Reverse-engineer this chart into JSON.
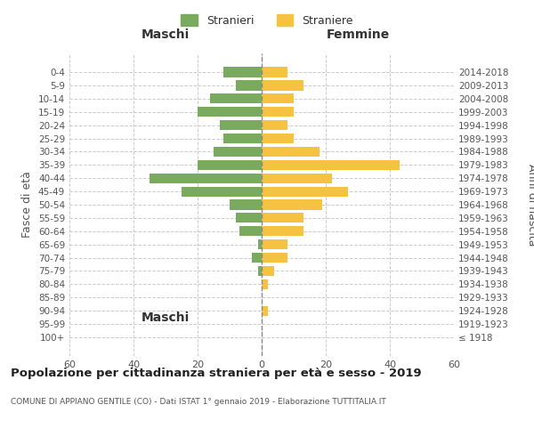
{
  "age_groups": [
    "100+",
    "95-99",
    "90-94",
    "85-89",
    "80-84",
    "75-79",
    "70-74",
    "65-69",
    "60-64",
    "55-59",
    "50-54",
    "45-49",
    "40-44",
    "35-39",
    "30-34",
    "25-29",
    "20-24",
    "15-19",
    "10-14",
    "5-9",
    "0-4"
  ],
  "birth_years": [
    "≤ 1918",
    "1919-1923",
    "1924-1928",
    "1929-1933",
    "1934-1938",
    "1939-1943",
    "1944-1948",
    "1949-1953",
    "1954-1958",
    "1959-1963",
    "1964-1968",
    "1969-1973",
    "1974-1978",
    "1979-1983",
    "1984-1988",
    "1989-1993",
    "1994-1998",
    "1999-2003",
    "2004-2008",
    "2009-2013",
    "2014-2018"
  ],
  "maschi": [
    0,
    0,
    0,
    0,
    0,
    1,
    3,
    1,
    7,
    8,
    10,
    25,
    35,
    20,
    15,
    12,
    13,
    20,
    16,
    8,
    12
  ],
  "femmine": [
    0,
    0,
    2,
    0,
    2,
    4,
    8,
    8,
    13,
    13,
    19,
    27,
    22,
    43,
    18,
    10,
    8,
    10,
    10,
    13,
    8
  ],
  "color_maschi": "#7aaa5e",
  "color_femmine": "#f5c242",
  "background_color": "#ffffff",
  "grid_color": "#cccccc",
  "title_main": "Popolazione per cittadinanza straniera per età e sesso - 2019",
  "title_sub": "COMUNE DI APPIANO GENTILE (CO) - Dati ISTAT 1° gennaio 2019 - Elaborazione TUTTITALIA.IT",
  "xlabel_left": "Maschi",
  "xlabel_right": "Femmine",
  "ylabel_left": "Fasce di età",
  "ylabel_right": "Anni di nascita",
  "legend_maschi": "Stranieri",
  "legend_femmine": "Straniere",
  "xlim": 60
}
